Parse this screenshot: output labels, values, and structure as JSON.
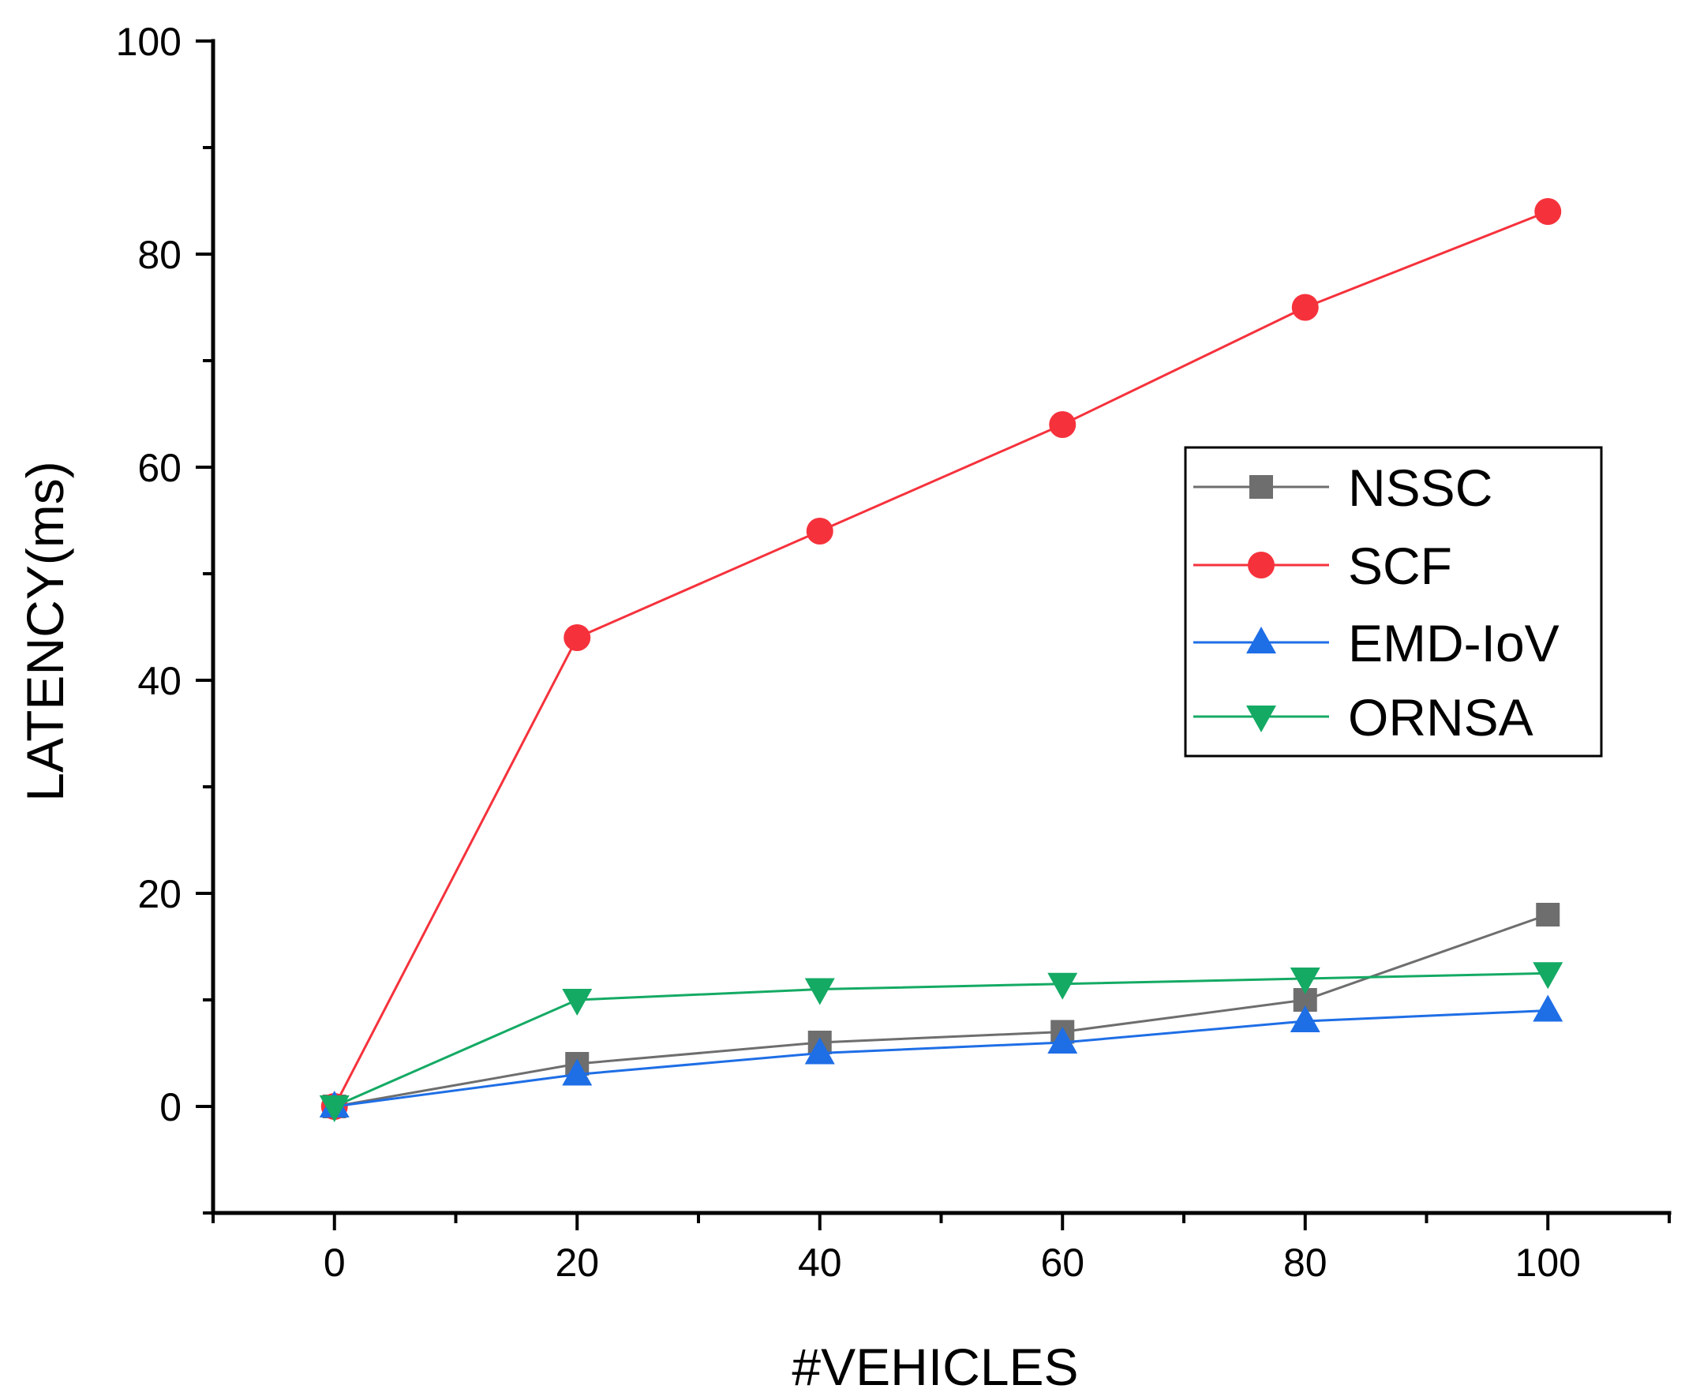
{
  "chart_data": {
    "type": "line",
    "title": "",
    "xlabel": "#VEHICLES",
    "ylabel": "LATENCY(ms)",
    "xlim": [
      -10,
      110
    ],
    "ylim": [
      -10,
      100
    ],
    "x_ticks": [
      0,
      20,
      40,
      60,
      80,
      100
    ],
    "y_ticks": [
      0,
      20,
      40,
      60,
      80,
      100
    ],
    "x_tick_labels": [
      "0",
      "20",
      "40",
      "60",
      "80",
      "100"
    ],
    "y_tick_labels": [
      "0",
      "20",
      "40",
      "60",
      "80",
      "100"
    ],
    "grid": false,
    "legend_position": "center-right",
    "x": [
      0,
      20,
      40,
      60,
      80,
      100
    ],
    "series": [
      {
        "name": "NSSC",
        "marker": "square",
        "color": "#6e6e6e",
        "values": [
          0,
          4,
          6,
          7,
          10,
          18
        ]
      },
      {
        "name": "SCF",
        "marker": "circle",
        "color": "#f5323c",
        "values": [
          0,
          44,
          54,
          64,
          75,
          84
        ]
      },
      {
        "name": "EMD-IoV",
        "marker": "triangle-up",
        "color": "#1e6ee6",
        "values": [
          0,
          3,
          5,
          6,
          8,
          9
        ]
      },
      {
        "name": "ORNSA",
        "marker": "triangle-down",
        "color": "#14aa64",
        "values": [
          0,
          10,
          11,
          11.5,
          12,
          12.5
        ]
      }
    ]
  }
}
